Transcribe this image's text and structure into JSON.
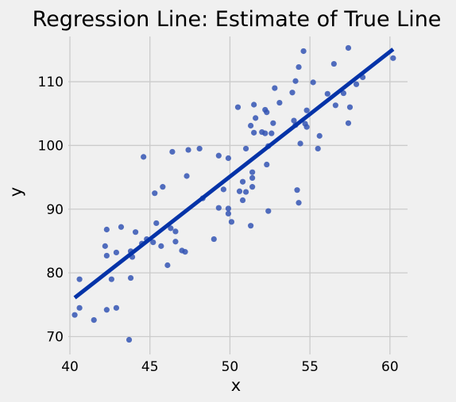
{
  "chart_data": {
    "type": "scatter",
    "title": "Regression Line: Estimate of True Line",
    "xlabel": "x",
    "ylabel": "y",
    "xlim": [
      39.9,
      61.1
    ],
    "ylim": [
      67.2,
      117.1
    ],
    "xticks": [
      40,
      45,
      50,
      55,
      60
    ],
    "yticks": [
      70,
      80,
      90,
      100,
      110
    ],
    "grid": true,
    "colors": {
      "points": "#3455b4",
      "line": "#0433a8",
      "background": "#f0f0f0",
      "grid": "#cbcbcb"
    },
    "regression_line": {
      "x": [
        40.3,
        60.2
      ],
      "y": [
        76.1,
        115.1
      ]
    },
    "points": [
      [
        40.3,
        73.4
      ],
      [
        40.6,
        79.0
      ],
      [
        40.6,
        74.5
      ],
      [
        41.5,
        72.6
      ],
      [
        42.2,
        84.2
      ],
      [
        42.3,
        82.7
      ],
      [
        42.3,
        86.8
      ],
      [
        42.3,
        74.2
      ],
      [
        42.6,
        79.0
      ],
      [
        42.9,
        83.2
      ],
      [
        42.9,
        74.5
      ],
      [
        43.2,
        87.2
      ],
      [
        43.7,
        69.5
      ],
      [
        43.8,
        83.4
      ],
      [
        43.8,
        79.2
      ],
      [
        43.9,
        82.5
      ],
      [
        44.1,
        86.4
      ],
      [
        44.5,
        84.6
      ],
      [
        44.6,
        98.2
      ],
      [
        44.8,
        85.3
      ],
      [
        45.2,
        84.8
      ],
      [
        45.3,
        92.5
      ],
      [
        45.4,
        87.8
      ],
      [
        45.7,
        84.2
      ],
      [
        45.8,
        93.5
      ],
      [
        46.1,
        81.2
      ],
      [
        46.3,
        87.0
      ],
      [
        46.4,
        99.0
      ],
      [
        46.6,
        84.9
      ],
      [
        46.6,
        86.5
      ],
      [
        47.0,
        83.5
      ],
      [
        47.2,
        83.3
      ],
      [
        47.3,
        95.2
      ],
      [
        47.4,
        99.3
      ],
      [
        48.1,
        99.5
      ],
      [
        48.3,
        91.7
      ],
      [
        49.0,
        85.3
      ],
      [
        49.3,
        90.2
      ],
      [
        49.3,
        98.4
      ],
      [
        49.6,
        93.1
      ],
      [
        49.9,
        98.0
      ],
      [
        49.9,
        89.3
      ],
      [
        49.9,
        90.1
      ],
      [
        50.1,
        88.0
      ],
      [
        50.5,
        106.0
      ],
      [
        50.6,
        92.8
      ],
      [
        50.8,
        91.4
      ],
      [
        50.8,
        94.3
      ],
      [
        51.0,
        92.7
      ],
      [
        51.0,
        99.5
      ],
      [
        51.3,
        87.4
      ],
      [
        51.3,
        103.1
      ],
      [
        51.4,
        95.8
      ],
      [
        51.4,
        94.9
      ],
      [
        51.4,
        93.5
      ],
      [
        51.5,
        102.0
      ],
      [
        51.5,
        106.4
      ],
      [
        51.6,
        104.3
      ],
      [
        52.0,
        102.1
      ],
      [
        52.2,
        105.6
      ],
      [
        52.2,
        101.9
      ],
      [
        52.3,
        97.0
      ],
      [
        52.3,
        105.2
      ],
      [
        52.4,
        89.7
      ],
      [
        52.4,
        99.9
      ],
      [
        52.6,
        101.9
      ],
      [
        52.7,
        103.5
      ],
      [
        52.8,
        109.0
      ],
      [
        53.1,
        106.7
      ],
      [
        53.9,
        108.3
      ],
      [
        54.0,
        103.9
      ],
      [
        54.1,
        110.1
      ],
      [
        54.1,
        103.2
      ],
      [
        54.2,
        93.0
      ],
      [
        54.3,
        91.0
      ],
      [
        54.3,
        112.3
      ],
      [
        54.4,
        100.3
      ],
      [
        54.6,
        114.8
      ],
      [
        54.7,
        103.4
      ],
      [
        54.8,
        105.5
      ],
      [
        54.8,
        102.9
      ],
      [
        55.2,
        109.9
      ],
      [
        55.5,
        99.5
      ],
      [
        55.6,
        101.5
      ],
      [
        56.1,
        108.1
      ],
      [
        56.5,
        112.8
      ],
      [
        56.6,
        106.3
      ],
      [
        57.1,
        108.2
      ],
      [
        57.4,
        115.3
      ],
      [
        57.4,
        103.5
      ],
      [
        57.5,
        106.0
      ],
      [
        57.9,
        109.6
      ],
      [
        58.3,
        110.7
      ],
      [
        60.2,
        113.7
      ]
    ]
  }
}
